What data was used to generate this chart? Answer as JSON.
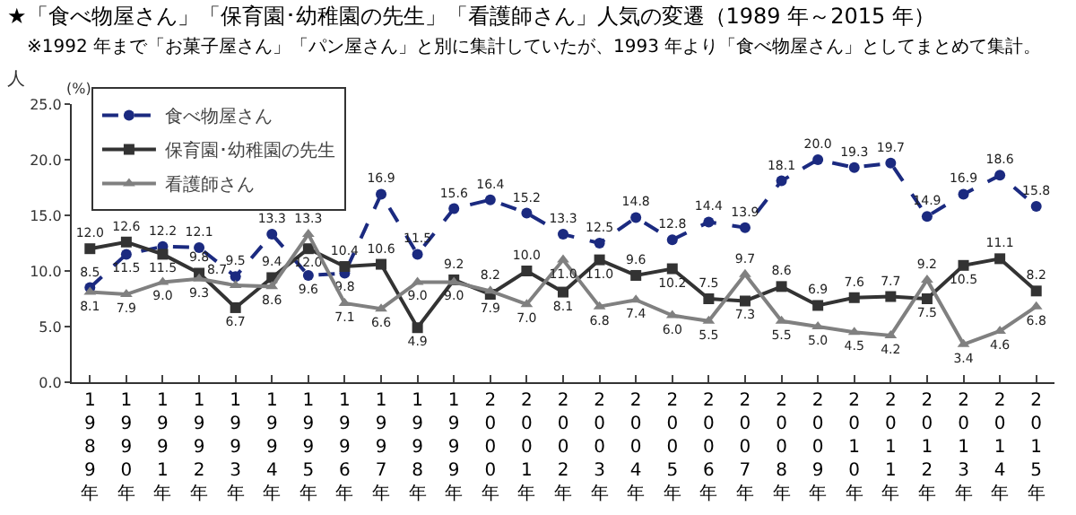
{
  "chart_data": {
    "type": "line",
    "title": "★「食べ物屋さん」「保育園･幼稚園の先生」「看護師さん」人気の変遷（1989 年～2015 年）",
    "subtitle": "※1992 年まで「お菓子屋さん」「パン屋さん」と別に集計していたが、1993 年より「食べ物屋さん」としてまとめて集計。",
    "ylabel": "(%)",
    "annotations": [
      "人"
    ],
    "categories": [
      "1989年",
      "1990年",
      "1991年",
      "1992年",
      "1993年",
      "1994年",
      "1995年",
      "1996年",
      "1997年",
      "1998年",
      "1999年",
      "2000年",
      "2001年",
      "2002年",
      "2003年",
      "2004年",
      "2005年",
      "2006年",
      "2007年",
      "2008年",
      "2009年",
      "2010年",
      "2011年",
      "2012年",
      "2013年",
      "2014年",
      "2015年"
    ],
    "series": [
      {
        "name": "食べ物屋さん",
        "color": "#1b2a80",
        "marker": "circle",
        "line_style": "dashed",
        "values": [
          8.5,
          11.5,
          12.2,
          12.1,
          9.5,
          13.3,
          9.6,
          9.8,
          16.9,
          11.5,
          15.6,
          16.4,
          15.2,
          13.3,
          12.5,
          14.8,
          12.8,
          14.4,
          13.9,
          18.1,
          20.0,
          19.3,
          19.7,
          14.9,
          16.9,
          18.6,
          15.8
        ],
        "value_labels": [
          "8.5",
          "11.5",
          "12.2",
          "12.1",
          "9.5",
          "13.3",
          "9.6",
          "9.8",
          "16.9",
          "11.5",
          "15.6",
          "16.4",
          "15.2",
          "13.3",
          "12.5",
          "14.8",
          "12.8",
          "14.4",
          "13.9",
          "18.1",
          "20.0",
          "19.3",
          "19.7",
          "14.9",
          "16.9",
          "18.6",
          "15.8"
        ]
      },
      {
        "name": "保育園･幼稚園の先生",
        "color": "#333333",
        "marker": "square",
        "line_style": "solid",
        "values": [
          12.0,
          12.6,
          11.5,
          9.8,
          6.7,
          9.4,
          12.0,
          10.4,
          10.6,
          4.9,
          9.2,
          7.9,
          10.0,
          8.1,
          11.0,
          9.6,
          10.2,
          7.5,
          7.3,
          8.6,
          6.9,
          7.6,
          7.7,
          7.5,
          10.5,
          11.1,
          8.2
        ],
        "value_labels": [
          "12.0",
          "12.6",
          "11.5",
          "9.8",
          "6.7",
          "9.4",
          "12.0",
          "10.4",
          "10.6",
          "4.9",
          "9.2",
          "7.9",
          "10.0",
          "8.1",
          "11.0",
          "9.6",
          "10.2",
          "7.5",
          "7.3",
          "8.6",
          "6.9",
          "7.6",
          "7.7",
          "7.5",
          "10.5",
          "11.1",
          "8.2"
        ]
      },
      {
        "name": "看護師さん",
        "color": "#808080",
        "marker": "triangle",
        "line_style": "solid",
        "values": [
          8.1,
          7.9,
          9.0,
          9.3,
          8.7,
          8.6,
          13.3,
          7.1,
          6.6,
          9.0,
          9.0,
          8.2,
          7.0,
          11.0,
          6.8,
          7.4,
          6.0,
          5.5,
          9.7,
          5.5,
          5.0,
          4.5,
          4.2,
          9.2,
          3.4,
          4.6,
          6.8
        ],
        "value_labels": [
          "8.1",
          "7.9",
          "9.0",
          "9.3",
          "8.7",
          "8.6",
          "13.3",
          "7.1",
          "6.6",
          "9.0",
          "9.0",
          "8.2",
          "7.0",
          "11.0",
          "6.8",
          "7.4",
          "6.0",
          "5.5",
          "9.7",
          "5.5",
          "5.0",
          "4.5",
          "4.2",
          "9.2",
          "3.4",
          "4.6",
          "6.8"
        ]
      }
    ],
    "ylim": [
      0,
      25
    ],
    "yticks": [
      {
        "value": 0,
        "label": "0.0"
      },
      {
        "value": 5,
        "label": "5.0"
      },
      {
        "value": 10,
        "label": "10.0"
      },
      {
        "value": 15,
        "label": "15.0"
      },
      {
        "value": 20,
        "label": "20.0"
      },
      {
        "value": 25,
        "label": "25.0"
      }
    ],
    "grid": false,
    "legend": "top left"
  }
}
